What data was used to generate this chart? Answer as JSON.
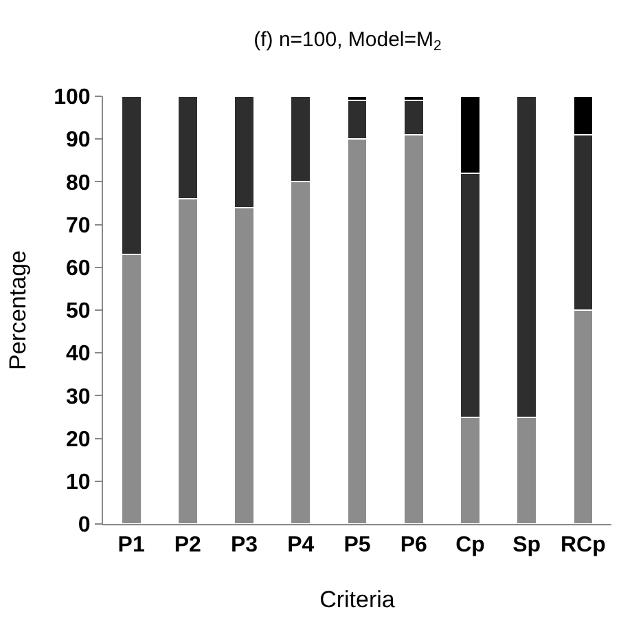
{
  "chart_data": {
    "type": "bar",
    "stacked": true,
    "title": "(f) n=100, Model=M$_{2}$",
    "xlabel": "Criteria",
    "ylabel": "Percentage",
    "categories": [
      "P1",
      "P2",
      "P3",
      "P4",
      "P5",
      "P6",
      "Cp",
      "Sp",
      "RCp"
    ],
    "series": [
      {
        "color": "#8c8c8c",
        "values": [
          63,
          76,
          74,
          80,
          90,
          91,
          25,
          25,
          50
        ]
      },
      {
        "color": "#2e2e2e",
        "values": [
          37,
          24,
          26,
          20,
          9,
          8,
          57,
          75,
          41
        ]
      },
      {
        "color": "#000000",
        "values": [
          0,
          0,
          0,
          0,
          1,
          1,
          18,
          0,
          9
        ]
      }
    ],
    "ylim": [
      0,
      100
    ],
    "yticks": [
      0,
      10,
      20,
      30,
      40,
      50,
      60,
      70,
      80,
      90,
      100
    ],
    "grid": false
  }
}
